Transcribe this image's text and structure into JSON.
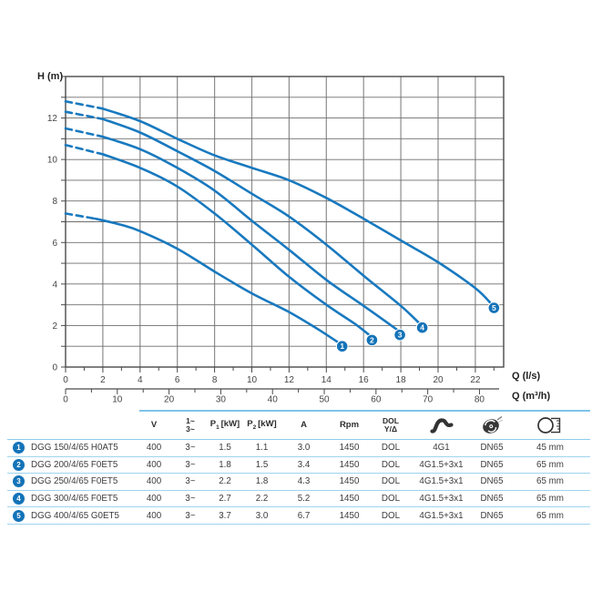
{
  "page": {
    "y_axis_label": "H (m)",
    "x_axis1_label": "Q (l/s)",
    "x_axis2_label": "Q (m³/h)"
  },
  "chart_data": {
    "type": "line",
    "ylabel": "H (m)",
    "xlabel": "Q (l/s)",
    "x2label": "Q (m³/h)",
    "xlim": [
      0,
      23.5
    ],
    "ylim": [
      0,
      14
    ],
    "x2_unit_per_x": 3.6,
    "x_major_ticks": [
      0,
      2,
      4,
      6,
      8,
      10,
      12,
      14,
      16,
      18,
      20,
      22
    ],
    "x_minor_step": 1,
    "x2_major_ticks": [
      0,
      10,
      20,
      30,
      40,
      50,
      60,
      70,
      80
    ],
    "x2_minor_step": 5,
    "y_major_ticks": [
      0,
      2,
      4,
      6,
      8,
      10,
      12
    ],
    "y_minor_step": 1,
    "grid": "on",
    "series": [
      {
        "id": "1",
        "model": "DGG 150/4/65 H0AT5",
        "dash": [
          [
            0,
            7.4
          ],
          [
            1.6,
            7.15
          ]
        ],
        "solid": [
          [
            1.6,
            7.15
          ],
          [
            3,
            6.85
          ],
          [
            4,
            6.55
          ],
          [
            6,
            5.7
          ],
          [
            8,
            4.6
          ],
          [
            10,
            3.55
          ],
          [
            12,
            2.65
          ],
          [
            13.5,
            1.85
          ],
          [
            14.7,
            1.15
          ]
        ],
        "marker": [
          14.85,
          1.0
        ]
      },
      {
        "id": "2",
        "model": "DGG 200/4/65 F0ET5",
        "dash": [
          [
            0,
            10.7
          ],
          [
            2,
            10.25
          ]
        ],
        "solid": [
          [
            2,
            10.25
          ],
          [
            4,
            9.6
          ],
          [
            6,
            8.7
          ],
          [
            8,
            7.4
          ],
          [
            10,
            5.9
          ],
          [
            12,
            4.35
          ],
          [
            14,
            3.0
          ],
          [
            15.5,
            2.1
          ],
          [
            16.3,
            1.55
          ]
        ],
        "marker": [
          16.45,
          1.3
        ]
      },
      {
        "id": "3",
        "model": "DGG 250/4/65 F0ET5",
        "dash": [
          [
            0,
            11.5
          ],
          [
            2,
            11.1
          ]
        ],
        "solid": [
          [
            2,
            11.1
          ],
          [
            4,
            10.5
          ],
          [
            6,
            9.6
          ],
          [
            8,
            8.5
          ],
          [
            10,
            7.05
          ],
          [
            12,
            5.65
          ],
          [
            14,
            4.2
          ],
          [
            16,
            2.95
          ],
          [
            17.8,
            1.8
          ]
        ],
        "marker": [
          17.95,
          1.55
        ]
      },
      {
        "id": "4",
        "model": "DGG 300/4/65 F0ET5",
        "dash": [
          [
            0,
            12.3
          ],
          [
            2,
            11.95
          ]
        ],
        "solid": [
          [
            2,
            11.95
          ],
          [
            4,
            11.3
          ],
          [
            6,
            10.4
          ],
          [
            8,
            9.45
          ],
          [
            10,
            8.35
          ],
          [
            12,
            7.25
          ],
          [
            14,
            5.9
          ],
          [
            16,
            4.4
          ],
          [
            18,
            2.95
          ],
          [
            19.0,
            2.1
          ]
        ],
        "marker": [
          19.15,
          1.9
        ]
      },
      {
        "id": "5",
        "model": "DGG 400/4/65 G0ET5",
        "dash": [
          [
            0,
            12.8
          ],
          [
            2,
            12.45
          ]
        ],
        "solid": [
          [
            2,
            12.45
          ],
          [
            4,
            11.85
          ],
          [
            6,
            11.0
          ],
          [
            8,
            10.2
          ],
          [
            10,
            9.6
          ],
          [
            12,
            9.0
          ],
          [
            14,
            8.15
          ],
          [
            16,
            7.15
          ],
          [
            18,
            6.1
          ],
          [
            20,
            5.05
          ],
          [
            22,
            3.8
          ],
          [
            22.9,
            3.0
          ]
        ],
        "marker": [
          23.0,
          2.85
        ]
      }
    ]
  },
  "table": {
    "columns": [
      {
        "id": "model",
        "label": ""
      },
      {
        "id": "voltage",
        "label": "V"
      },
      {
        "id": "phase",
        "label": "1~",
        "label2": "3~"
      },
      {
        "id": "p1",
        "label": "P",
        "sub": "1",
        "unit": "[kW]"
      },
      {
        "id": "p2",
        "label": "P",
        "sub": "2",
        "unit": "[kW]"
      },
      {
        "id": "current",
        "label": "A"
      },
      {
        "id": "rpm",
        "label": "Rpm"
      },
      {
        "id": "starting",
        "label": "DOL",
        "label2": "Y/Δ"
      },
      {
        "id": "cable",
        "icon": "cable-icon"
      },
      {
        "id": "discharge",
        "icon": "impeller-icon"
      },
      {
        "id": "free-passage",
        "icon": "outlet-icon"
      }
    ],
    "rows": [
      {
        "num": "1",
        "model": "DGG 150/4/65 H0AT5",
        "v": "400",
        "phase": "3~",
        "p1": "1.5",
        "p2": "1.1",
        "a": "3.0",
        "rpm": "1450",
        "start": "DOL",
        "cable": "4G1",
        "dn": "DN65",
        "passage": "45 mm"
      },
      {
        "num": "2",
        "model": "DGG 200/4/65 F0ET5",
        "v": "400",
        "phase": "3~",
        "p1": "1.8",
        "p2": "1.5",
        "a": "3.4",
        "rpm": "1450",
        "start": "DOL",
        "cable": "4G1.5+3x1",
        "dn": "DN65",
        "passage": "65 mm"
      },
      {
        "num": "3",
        "model": "DGG 250/4/65 F0ET5",
        "v": "400",
        "phase": "3~",
        "p1": "2.2",
        "p2": "1.8",
        "a": "4.3",
        "rpm": "1450",
        "start": "DOL",
        "cable": "4G1.5+3x1",
        "dn": "DN65",
        "passage": "65 mm"
      },
      {
        "num": "4",
        "model": "DGG 300/4/65 F0ET5",
        "v": "400",
        "phase": "3~",
        "p1": "2.7",
        "p2": "2.2",
        "a": "5.2",
        "rpm": "1450",
        "start": "DOL",
        "cable": "4G1.5+3x1",
        "dn": "DN65",
        "passage": "65 mm"
      },
      {
        "num": "5",
        "model": "DGG 400/4/65 G0ET5",
        "v": "400",
        "phase": "3~",
        "p1": "3.7",
        "p2": "3.0",
        "a": "6.7",
        "rpm": "1450",
        "start": "DOL",
        "cable": "4G1.5+3x1",
        "dn": "DN65",
        "passage": "65 mm"
      }
    ]
  },
  "colors": {
    "curve": "#1879bf",
    "marker": "#1473b8",
    "separator": "#a0d4ef",
    "grid_v": "#8c8c8c",
    "grid_h": "#6e6e6e",
    "axis": "#4a4a4a",
    "tick_text": "#454545",
    "table_text": "#3c3c3c"
  }
}
